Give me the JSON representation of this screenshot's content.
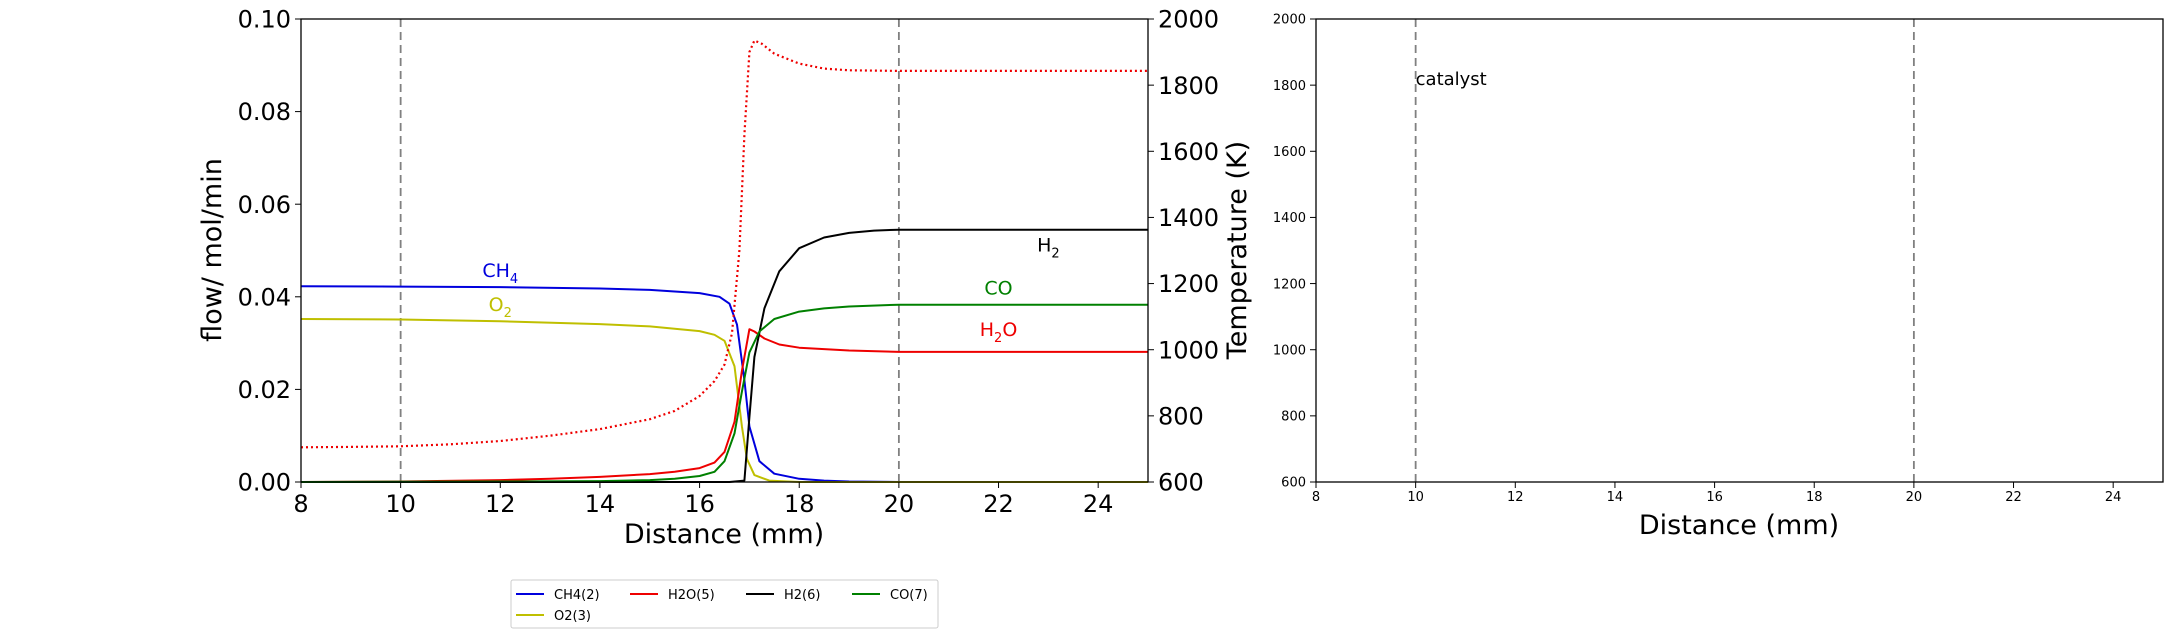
{
  "chart_data": [
    {
      "type": "line",
      "xlabel": "Distance (mm)",
      "ylabel": "flow/ mol/min",
      "y2label": "Temperature (K)",
      "xlim": [
        8,
        25
      ],
      "ylim": [
        0,
        0.1
      ],
      "y2lim": [
        600,
        2000
      ],
      "xticks": [
        "8",
        "10",
        "12",
        "14",
        "16",
        "18",
        "20",
        "22",
        "24"
      ],
      "yticks": [
        "0.00",
        "0.02",
        "0.04",
        "0.06",
        "0.08",
        "0.10"
      ],
      "y2ticks": [
        "600",
        "800",
        "1000",
        "1200",
        "1400",
        "1600",
        "1800",
        "2000"
      ],
      "vlines": [
        10,
        20
      ],
      "series": [
        {
          "name": "CH4(2)",
          "color": "#0000dd",
          "style": "solid",
          "x": [
            8,
            10,
            12,
            14,
            15,
            16,
            16.4,
            16.6,
            16.75,
            16.9,
            17.0,
            17.2,
            17.5,
            18,
            18.5,
            19,
            20,
            25
          ],
          "y": [
            0.0423,
            0.0422,
            0.0421,
            0.0418,
            0.0415,
            0.0408,
            0.04,
            0.0385,
            0.034,
            0.022,
            0.012,
            0.0045,
            0.0018,
            0.0007,
            0.0003,
            0.0001,
            0.0,
            0.0
          ]
        },
        {
          "name": "O2(3)",
          "color": "#bfbf00",
          "style": "solid",
          "x": [
            8,
            10,
            12,
            14,
            15,
            16,
            16.3,
            16.5,
            16.7,
            16.85,
            16.95,
            17.1,
            17.4,
            18,
            25
          ],
          "y": [
            0.0352,
            0.0351,
            0.0347,
            0.0341,
            0.0336,
            0.0326,
            0.0318,
            0.0305,
            0.025,
            0.012,
            0.005,
            0.0015,
            0.0003,
            0.0,
            0.0
          ]
        },
        {
          "name": "H2O(5)",
          "color": "#ee0000",
          "style": "solid",
          "x": [
            8,
            10,
            12,
            13,
            14,
            15,
            15.5,
            16,
            16.3,
            16.5,
            16.7,
            16.85,
            17.0,
            17.1,
            17.3,
            17.6,
            18,
            19,
            20,
            25
          ],
          "y": [
            0.0,
            0.0001,
            0.0004,
            0.0007,
            0.0011,
            0.0017,
            0.0022,
            0.003,
            0.0042,
            0.0065,
            0.013,
            0.024,
            0.033,
            0.0325,
            0.031,
            0.0297,
            0.029,
            0.0284,
            0.0281,
            0.0281
          ]
        },
        {
          "name": "H2(6)",
          "color": "#000000",
          "style": "solid",
          "x": [
            8,
            16.6,
            16.9,
            17.0,
            17.1,
            17.3,
            17.6,
            18,
            18.5,
            19,
            19.5,
            20,
            25
          ],
          "y": [
            0.0,
            0.0,
            0.0003,
            0.014,
            0.027,
            0.0375,
            0.0455,
            0.0505,
            0.0528,
            0.0538,
            0.0543,
            0.0545,
            0.0545
          ]
        },
        {
          "name": "CO(7)",
          "color": "#008000",
          "style": "solid",
          "x": [
            8,
            12,
            14,
            15,
            15.5,
            16,
            16.3,
            16.5,
            16.7,
            16.85,
            17.0,
            17.2,
            17.5,
            18,
            18.5,
            19,
            20,
            25
          ],
          "y": [
            0.0,
            0.0001,
            0.0002,
            0.0004,
            0.0007,
            0.0013,
            0.0022,
            0.0045,
            0.0105,
            0.0195,
            0.028,
            0.0325,
            0.0352,
            0.0368,
            0.0375,
            0.0379,
            0.0383,
            0.0383
          ]
        },
        {
          "name": "",
          "color": "#ee0000",
          "style": "dotted",
          "axis": "right",
          "x": [
            8,
            9,
            10,
            11,
            12,
            13,
            14,
            15,
            15.5,
            16,
            16.3,
            16.5,
            16.65,
            16.8,
            16.9,
            17.0,
            17.1,
            17.25,
            17.5,
            18,
            18.5,
            19,
            20,
            25
          ],
          "y": [
            705,
            706,
            708,
            714,
            724,
            740,
            760,
            790,
            815,
            860,
            905,
            955,
            1050,
            1300,
            1650,
            1900,
            1935,
            1925,
            1895,
            1865,
            1850,
            1845,
            1843,
            1843
          ]
        }
      ],
      "annotations": [
        {
          "parts": [
            "CH",
            "4"
          ],
          "x": 12.0,
          "y": 0.0443,
          "color": "#0000dd"
        },
        {
          "parts": [
            "O",
            "2"
          ],
          "x": 12.0,
          "y": 0.0369,
          "color": "#bfbf00"
        },
        {
          "parts": [
            "H",
            "2"
          ],
          "x": 23.0,
          "y": 0.0498,
          "color": "#000000"
        },
        {
          "parts": [
            "CO",
            ""
          ],
          "x": 22.0,
          "y": 0.0405,
          "color": "#008000"
        },
        {
          "parts": [
            "H",
            "2",
            "O"
          ],
          "x": 22.0,
          "y": 0.0315,
          "color": "#ee0000"
        }
      ]
    },
    {
      "type": "line",
      "xlabel": "Distance (mm)",
      "xlim": [
        8,
        25
      ],
      "ylim": [
        600,
        2000
      ],
      "xticks": [
        "8",
        "10",
        "12",
        "14",
        "16",
        "18",
        "20",
        "22",
        "24"
      ],
      "yticks": [
        "600",
        "800",
        "1000",
        "1200",
        "1400",
        "1600",
        "1800",
        "2000"
      ],
      "vlines": [
        10,
        20
      ],
      "annotations": [
        {
          "text": "catalyst",
          "x": 10.0,
          "y": 1800,
          "color": "#000000"
        }
      ]
    }
  ],
  "legend": {
    "placement": "bottom",
    "entries": [
      {
        "label": "CH4(2)",
        "color": "#0000dd"
      },
      {
        "label": "H2O(5)",
        "color": "#ee0000"
      },
      {
        "label": "H2(6)",
        "color": "#000000"
      },
      {
        "label": "CO(7)",
        "color": "#008000"
      },
      {
        "label": "O2(3)",
        "color": "#bfbf00"
      }
    ]
  }
}
